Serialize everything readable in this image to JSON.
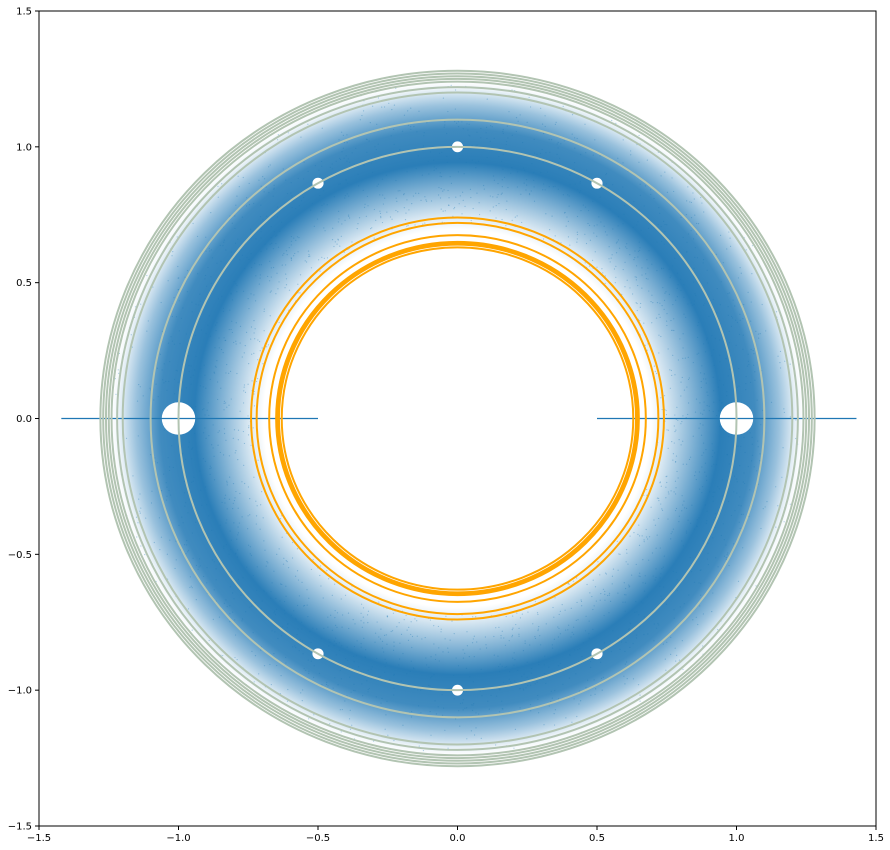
{
  "chart_data": {
    "type": "scatter",
    "title": "",
    "xlabel": "",
    "ylabel": "",
    "xlim": [
      -1.5,
      1.5
    ],
    "ylim": [
      -1.5,
      1.5
    ],
    "grid": false,
    "aspect": "equal",
    "x_ticks": [
      {
        "v": -1.5,
        "label": "−1.5"
      },
      {
        "v": -1.0,
        "label": "−1.0"
      },
      {
        "v": -0.5,
        "label": "−0.5"
      },
      {
        "v": 0.0,
        "label": "0.0"
      },
      {
        "v": 0.5,
        "label": "0.5"
      },
      {
        "v": 1.0,
        "label": "1.0"
      },
      {
        "v": 1.5,
        "label": "1.5"
      }
    ],
    "y_ticks": [
      {
        "v": 1.5,
        "label": "1.5"
      },
      {
        "v": 1.0,
        "label": "1.0"
      },
      {
        "v": 0.5,
        "label": "0.5"
      },
      {
        "v": 0.0,
        "label": "0.0"
      },
      {
        "v": -0.5,
        "label": "−0.5"
      },
      {
        "v": -1.0,
        "label": "−1.0"
      },
      {
        "v": -1.5,
        "label": "−1.5"
      }
    ],
    "series": [
      {
        "kind": "annulus-point-cloud",
        "color": "#1f77b4",
        "r_inner": 0.72,
        "r_dense_band": [
          0.8,
          1.1
        ],
        "r_outer": 1.24,
        "gaps_at": [
          {
            "x": -1.0,
            "y": 0.0,
            "r": 0.06
          },
          {
            "x": 1.0,
            "y": 0.0,
            "r": 0.06
          },
          {
            "x": 0.0,
            "y": 1.0,
            "r": 0.02
          },
          {
            "x": 0.0,
            "y": -1.0,
            "r": 0.02
          },
          {
            "x": 0.5,
            "y": 0.866,
            "r": 0.02
          },
          {
            "x": -0.5,
            "y": 0.866,
            "r": 0.02
          },
          {
            "x": 0.5,
            "y": -0.866,
            "r": 0.02
          },
          {
            "x": -0.5,
            "y": -0.866,
            "r": 0.02
          }
        ]
      },
      {
        "kind": "segments",
        "color": "#1f77b4",
        "segments": [
          {
            "x1": -1.42,
            "x2": -0.5,
            "y": 0.0
          },
          {
            "x1": 0.5,
            "x2": 1.43,
            "y": 0.0
          }
        ]
      },
      {
        "kind": "circles",
        "color": "#b2c4b2",
        "radii": [
          1.0,
          1.1,
          1.2,
          1.22,
          1.24,
          1.25,
          1.26,
          1.27,
          1.28
        ]
      },
      {
        "kind": "circles",
        "color": "#ffa500",
        "radii": [
          0.63,
          0.64,
          0.645,
          0.65,
          0.675,
          0.72,
          0.74
        ]
      }
    ]
  }
}
